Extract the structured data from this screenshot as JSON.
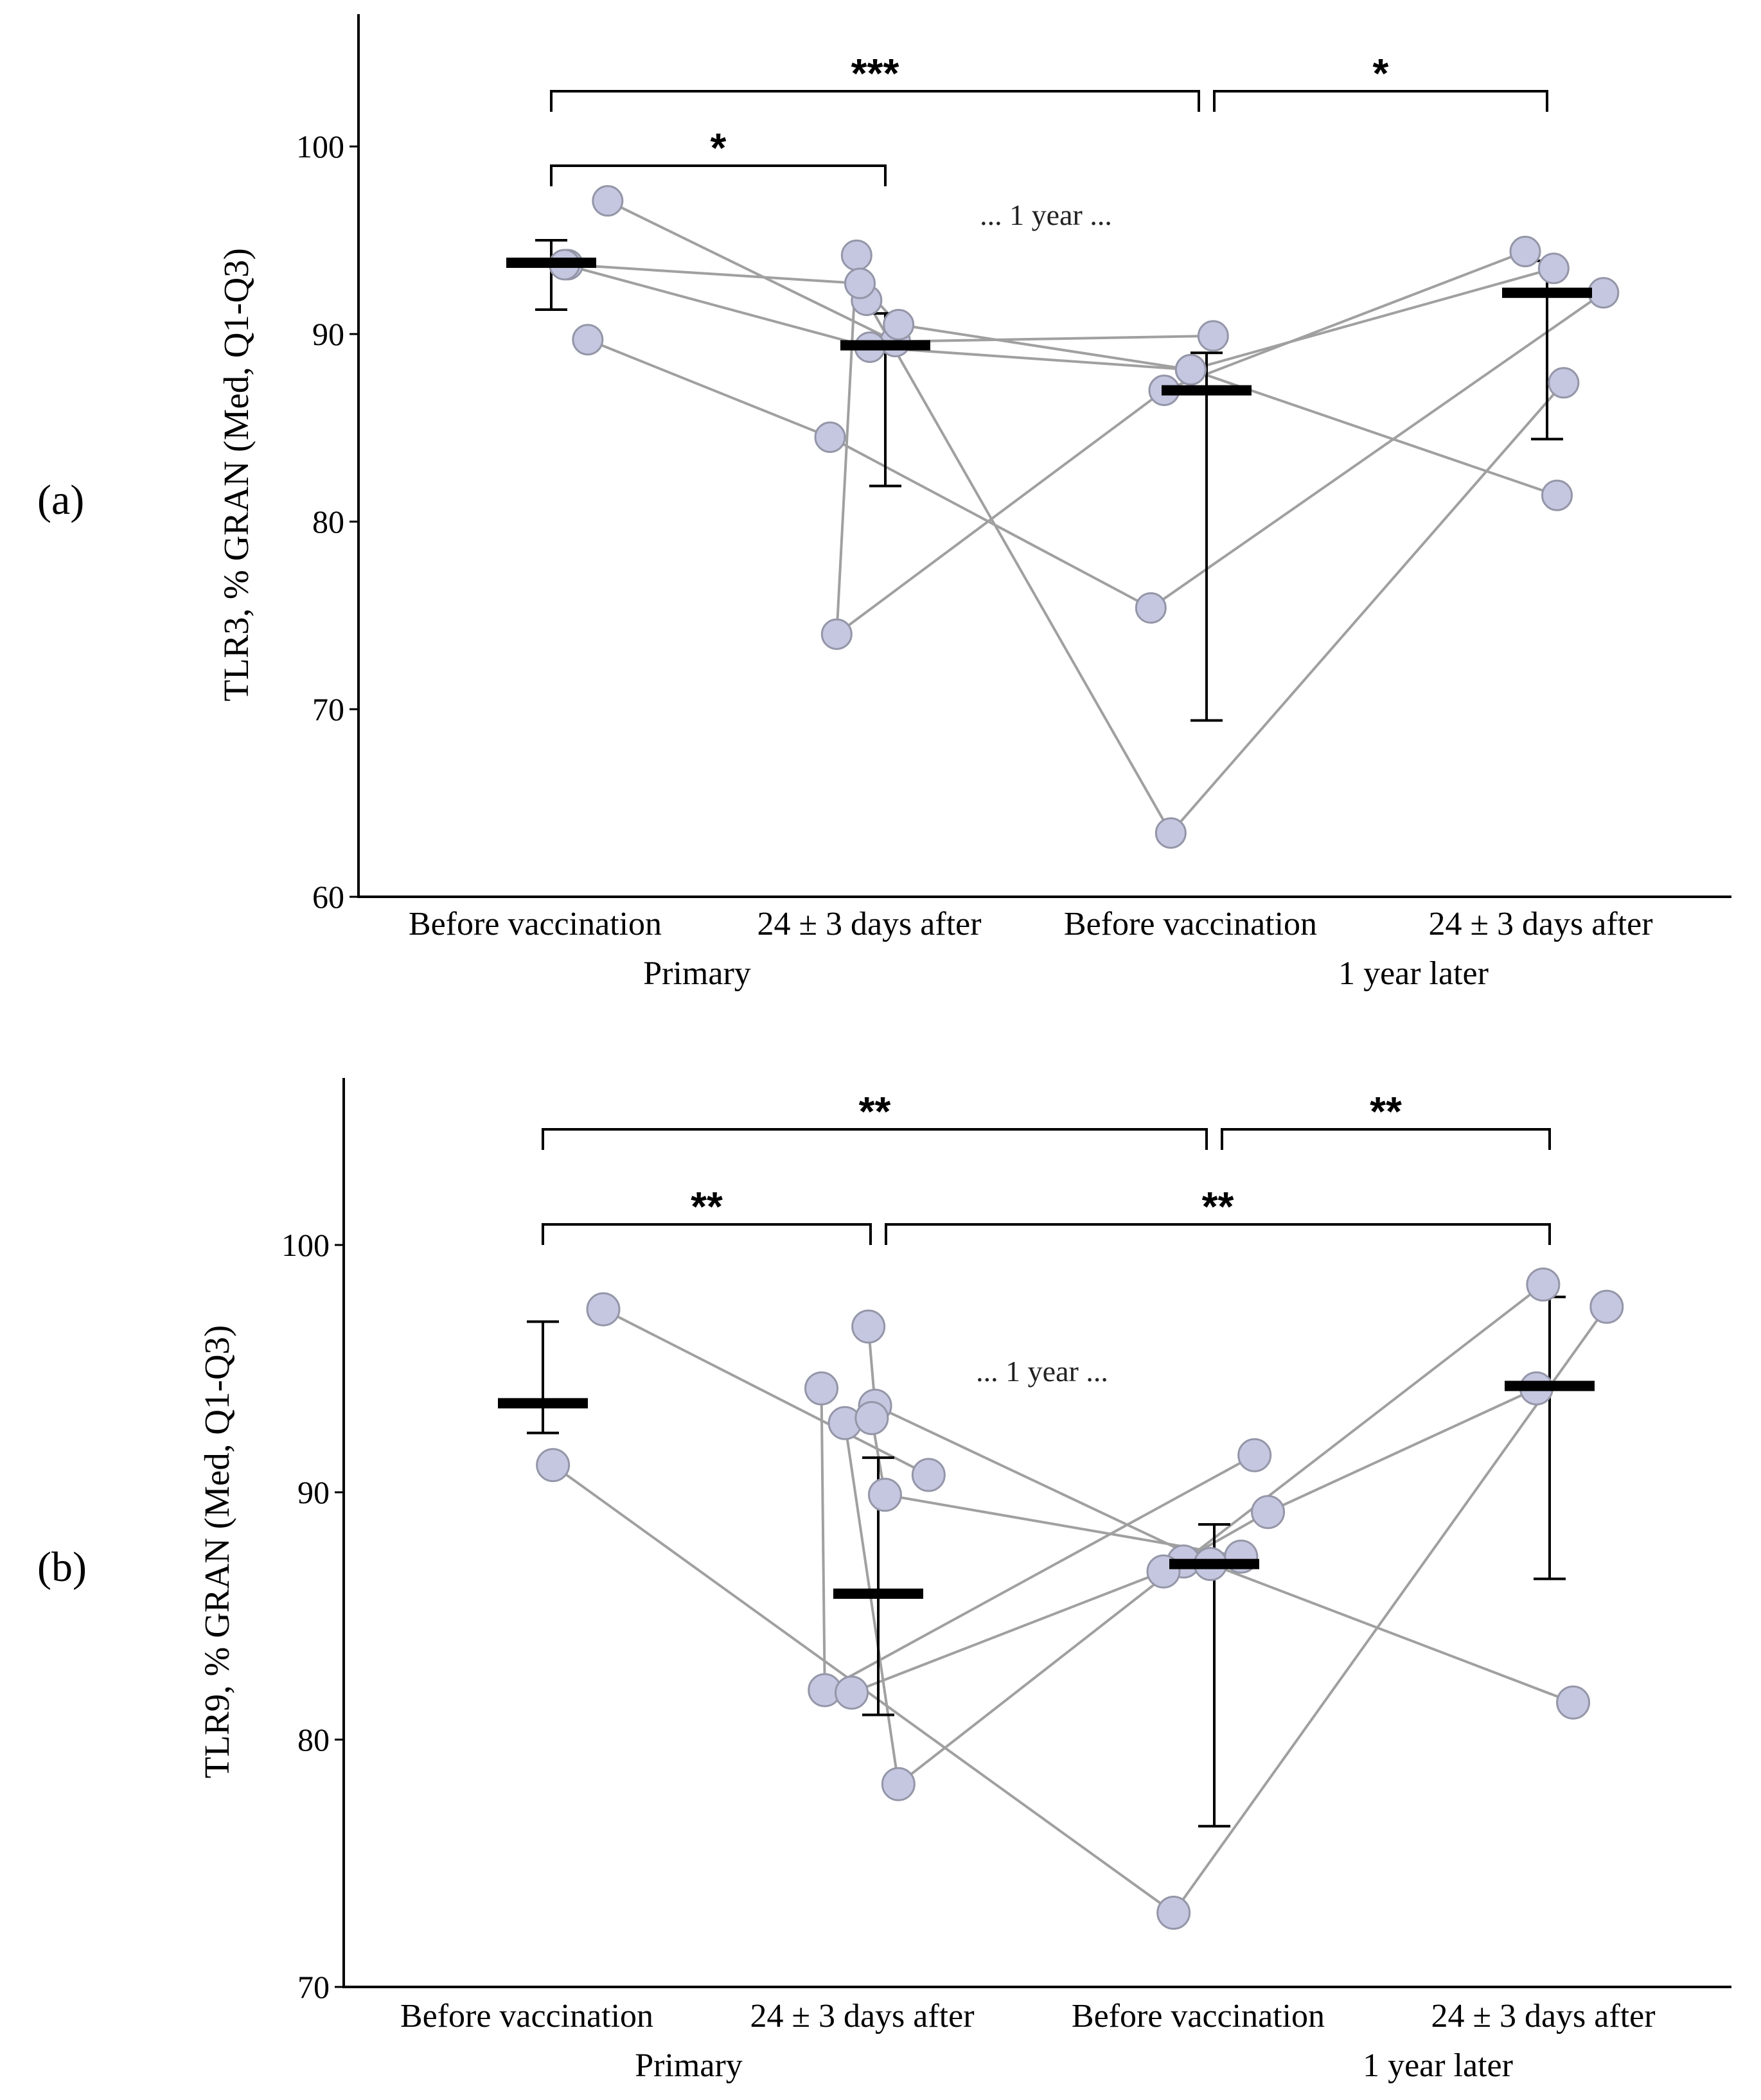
{
  "chart_data": [
    {
      "type": "scatter",
      "panel_label": "(a)",
      "ylabel": "TLR3, % GRAN (Med, Q1-Q3)",
      "ylim": [
        60,
        107
      ],
      "yticks": [
        60,
        70,
        80,
        90,
        100
      ],
      "ytick_labels": [
        "60",
        "70",
        "80",
        "90",
        "100"
      ],
      "categories": [
        "Before vaccination",
        "24 ± 3 days after",
        "Before vaccination",
        "24 ± 3 days after"
      ],
      "group_labels": [
        "Primary",
        "1 year later"
      ],
      "gap_annotation": "... 1 year ...",
      "subjects": [
        {
          "name": "S1",
          "points": [
            [
              -0.08,
              94.2
            ],
            [
              0.86,
              74.0
            ],
            [
              1.84,
              87.0
            ],
            [
              2.96,
              94.4
            ]
          ]
        },
        {
          "name": "S2",
          "points": [
            [
              0.17,
              97.1
            ],
            [
              1.03,
              89.6
            ],
            [
              2.02,
              89.9
            ]
          ]
        },
        {
          "name": "S3",
          "points": [
            [
              -0.05,
              91.8
            ],
            [
              1.86,
              63.4
            ],
            [
              3.05,
              87.4
            ]
          ]
        },
        {
          "name": "S4",
          "points": [
            [
              0.05,
              93.7
            ],
            [
              0.93,
              92.7
            ],
            [
              1.04,
              90.5
            ],
            [
              1.92,
              88.1
            ],
            [
              3.03,
              81.4
            ]
          ]
        },
        {
          "name": "S5",
          "points": [
            [
              0.11,
              89.7
            ],
            [
              0.84,
              84.5
            ],
            [
              1.8,
              75.4
            ],
            [
              3.17,
              92.2
            ]
          ]
        },
        {
          "name": "S6",
          "points": [
            [
              0.04,
              93.7
            ],
            [
              0.96,
              89.3
            ],
            [
              1.92,
              88.1
            ],
            [
              3.02,
              93.5
            ]
          ]
        }
      ],
      "medians": [
        93.8,
        89.4,
        87.0,
        92.2
      ],
      "q1": [
        91.3,
        81.9,
        69.4,
        84.4
      ],
      "q3": [
        95.0,
        91.1,
        89.0,
        93.9
      ],
      "significance": [
        {
          "from": 0,
          "to": 1,
          "label": "*",
          "level": 1
        },
        {
          "from": 0,
          "to": 2,
          "label": "***",
          "level": 2
        },
        {
          "from": 2,
          "to": 3,
          "label": "*",
          "level": 2
        }
      ],
      "colors": {
        "marker_fill": "#c5c7e0",
        "marker_edge": "#9496a8",
        "line": "#a0a0a0",
        "median": "#000000",
        "axis": "#000000"
      }
    },
    {
      "type": "scatter",
      "panel_label": "(b)",
      "ylabel": "TLR9, % GRAN (Med, Q1-Q3)",
      "ylim": [
        70,
        107
      ],
      "yticks": [
        70,
        80,
        90,
        100
      ],
      "ytick_labels": [
        "70",
        "80",
        "90",
        "100"
      ],
      "categories": [
        "Before vaccination",
        "24 ± 3 days after",
        "Before vaccination",
        "24 ± 3 days after"
      ],
      "group_labels": [
        "Primary",
        "1 year later"
      ],
      "gap_annotation": "... 1 year ...",
      "subjects": [
        {
          "name": "S1",
          "points": [
            [
              -0.17,
              94.2
            ],
            [
              0.84,
              82.0
            ],
            [
              2.12,
              91.5
            ]
          ]
        },
        {
          "name": "S2",
          "points": [
            [
              -0.1,
              92.8
            ],
            [
              1.06,
              78.2
            ],
            [
              1.91,
              87.2
            ],
            [
              2.98,
              98.4
            ]
          ]
        },
        {
          "name": "S3",
          "points": [
            [
              0.03,
              91.1
            ],
            [
              1.88,
              73.0
            ],
            [
              3.17,
              97.5
            ]
          ]
        },
        {
          "name": "S4",
          "points": [
            [
              -0.03,
              96.7
            ],
            [
              0.99,
              93.5
            ],
            [
              1.99,
              87.1
            ],
            [
              3.07,
              81.5
            ]
          ]
        },
        {
          "name": "S5",
          "points": [
            [
              0.18,
              97.4
            ],
            [
              1.15,
              90.7
            ]
          ]
        },
        {
          "name": "S6",
          "points": [
            [
              -0.02,
              93.0
            ],
            [
              1.02,
              89.9
            ],
            [
              2.08,
              87.4
            ]
          ]
        },
        {
          "name": "S7",
          "points": [
            [
              0.92,
              81.9
            ],
            [
              1.85,
              86.8
            ],
            [
              2.16,
              89.2
            ],
            [
              2.96,
              94.2
            ]
          ]
        }
      ],
      "medians": [
        93.6,
        85.9,
        87.1,
        94.3
      ],
      "q1": [
        92.4,
        81.0,
        76.5,
        86.5
      ],
      "q3": [
        96.9,
        91.4,
        88.7,
        97.9
      ],
      "significance": [
        {
          "from": 0,
          "to": 1,
          "label": "**",
          "level": 1
        },
        {
          "from": 1,
          "to": 3,
          "label": "**",
          "level": 1
        },
        {
          "from": 0,
          "to": 2,
          "label": "**",
          "level": 2
        },
        {
          "from": 2,
          "to": 3,
          "label": "**",
          "level": 2
        }
      ],
      "colors": {
        "marker_fill": "#c5c7e0",
        "marker_edge": "#9496a8",
        "line": "#a0a0a0",
        "median": "#000000",
        "axis": "#000000"
      }
    }
  ]
}
